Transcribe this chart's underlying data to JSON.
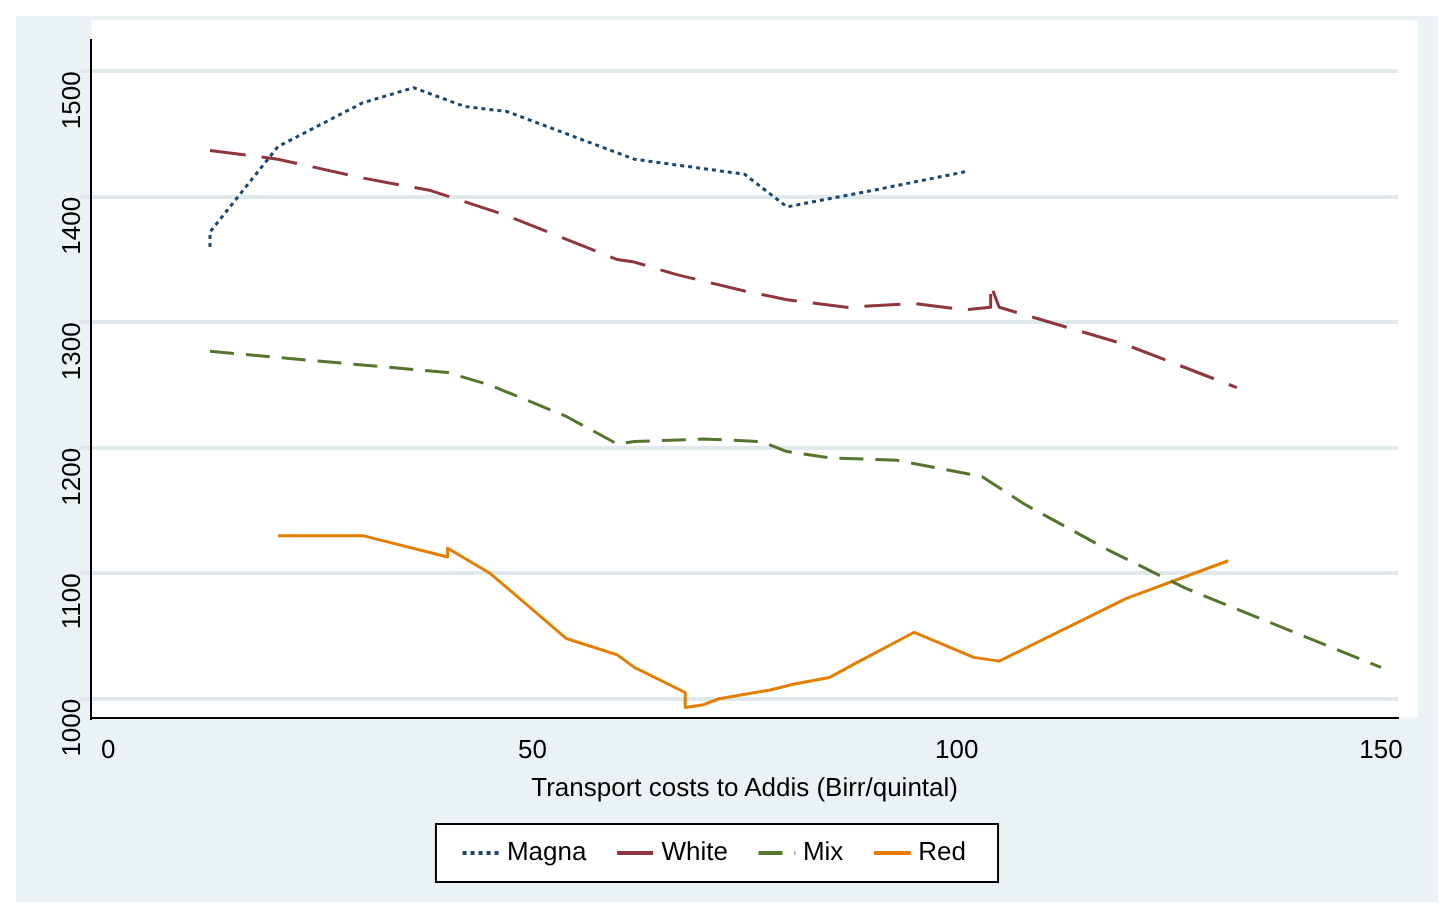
{
  "chart_data": {
    "type": "line",
    "xlabel": "Transport costs to Addis (Birr/quintal)",
    "xlim": [
      -2,
      152
    ],
    "xticks": [
      0,
      50,
      100,
      150
    ],
    "ylim": [
      985,
      1525
    ],
    "yticks": [
      1000,
      1100,
      1200,
      1300,
      1400,
      1500
    ],
    "grid": "y",
    "legend": "bottom",
    "marker": "none",
    "series": [
      {
        "name": "Magna",
        "color": "#1a476f",
        "line_style": "dotted",
        "x": [
          12,
          12,
          20,
          30,
          36,
          42,
          47,
          62,
          75,
          80,
          90,
          101
        ],
        "values": [
          1360,
          1372,
          1440,
          1475,
          1487,
          1472,
          1468,
          1430,
          1418,
          1392,
          1405,
          1420
        ]
      },
      {
        "name": "White",
        "color": "#90353b",
        "line_style": "dashed",
        "x": [
          12,
          20,
          30,
          38,
          47,
          60,
          62,
          67,
          75,
          80,
          87,
          95,
          101,
          104,
          104,
          105,
          120,
          133
        ],
        "values": [
          1437,
          1430,
          1415,
          1405,
          1385,
          1350,
          1348,
          1338,
          1325,
          1318,
          1312,
          1315,
          1310,
          1312,
          1330,
          1312,
          1282,
          1248
        ]
      },
      {
        "name": "Mix",
        "color": "#55752f",
        "line_style": "dashed",
        "x": [
          12,
          20,
          30,
          40,
          45,
          54,
          60,
          62,
          70,
          77,
          80,
          85,
          93,
          103,
          108,
          118,
          127,
          150
        ],
        "values": [
          1277,
          1272,
          1266,
          1260,
          1250,
          1225,
          1203,
          1205,
          1207,
          1205,
          1197,
          1192,
          1190,
          1177,
          1155,
          1118,
          1088,
          1025
        ]
      },
      {
        "name": "Red",
        "color": "#e37e00",
        "line_style": "solid",
        "x": [
          20,
          30,
          40,
          40,
          42,
          45,
          54,
          60,
          62,
          68,
          68,
          70,
          72,
          78,
          81,
          85,
          88,
          95,
          102,
          105,
          120,
          132
        ],
        "values": [
          1130,
          1130,
          1113,
          1120,
          1112,
          1100,
          1048,
          1035,
          1025,
          1005,
          993,
          995,
          1000,
          1007,
          1012,
          1017,
          1028,
          1053,
          1033,
          1030,
          1080,
          1110
        ]
      }
    ]
  }
}
